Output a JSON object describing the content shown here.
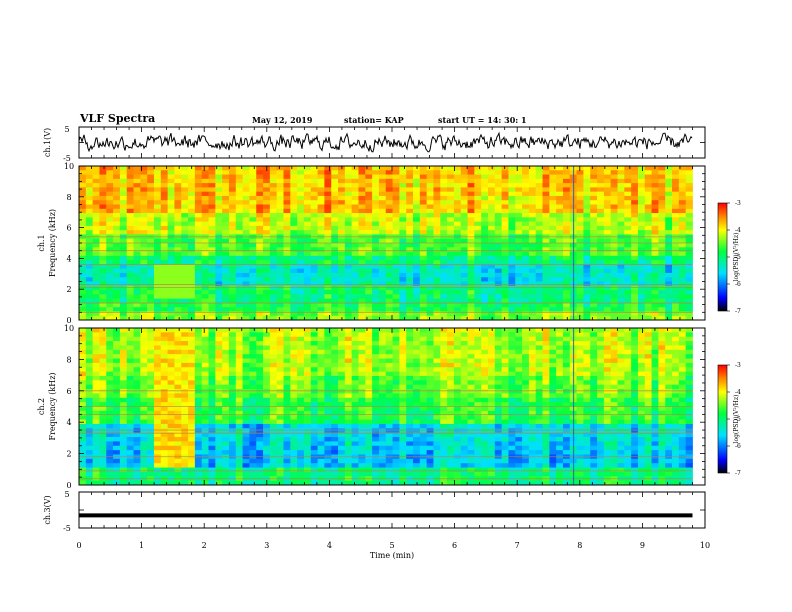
{
  "header": {
    "title": "VLF Spectra",
    "date": "May 12, 2019",
    "station": "station= KAP",
    "start": "start  UT  =   14: 30: 1"
  },
  "chart_data": [
    {
      "type": "line",
      "ylabel": "ch.1(V)",
      "ylim": [
        -5,
        5
      ],
      "y_ticks": [
        "5",
        "-5"
      ],
      "x_ticks": [
        "0",
        "1",
        "2",
        "3",
        "4",
        "5",
        "6",
        "7",
        "8",
        "9",
        "10"
      ],
      "xlim": [
        0,
        10
      ],
      "data_extent_min": 9.8,
      "description_values": "noisy waveform fluctuating between about -2 and 2.5 V"
    },
    {
      "type": "heatmap",
      "ylabel": "ch.1\nFrequency (kHz)",
      "ylim": [
        0,
        10
      ],
      "y_ticks": [
        "0",
        "2",
        "4",
        "6",
        "8",
        "10"
      ],
      "colorbar": {
        "label": "log(PSD)(V²/Hz)",
        "range": [
          -7,
          -3
        ],
        "ticks": [
          "-3",
          "-4",
          "-5",
          "-6",
          "-7"
        ]
      },
      "burst": {
        "t_start_min": 1.25,
        "t_end_min": 1.85
      }
    },
    {
      "type": "heatmap",
      "ylabel": "ch.2\nFrequency (kHz)",
      "ylim": [
        0,
        10
      ],
      "y_ticks": [
        "0",
        "2",
        "4",
        "6",
        "8",
        "10"
      ],
      "colorbar": {
        "label": "log(PSD)(V²/Hz)",
        "range": [
          -7,
          -3
        ],
        "ticks": [
          "-3",
          "-4",
          "-5",
          "-6",
          "-7"
        ]
      },
      "burst": {
        "t_start_min": 1.3,
        "t_end_min": 1.85
      }
    },
    {
      "type": "line",
      "ylabel": "ch.3(V)",
      "ylim": [
        -5,
        5
      ],
      "y_ticks": [
        "5",
        "-5"
      ],
      "constant_value": -1.5,
      "x_ticks": [
        "0",
        "1",
        "2",
        "3",
        "4",
        "5",
        "6",
        "7",
        "8",
        "9",
        "10"
      ],
      "xlabel": "Time (min)",
      "xlim": [
        0,
        10
      ]
    }
  ]
}
